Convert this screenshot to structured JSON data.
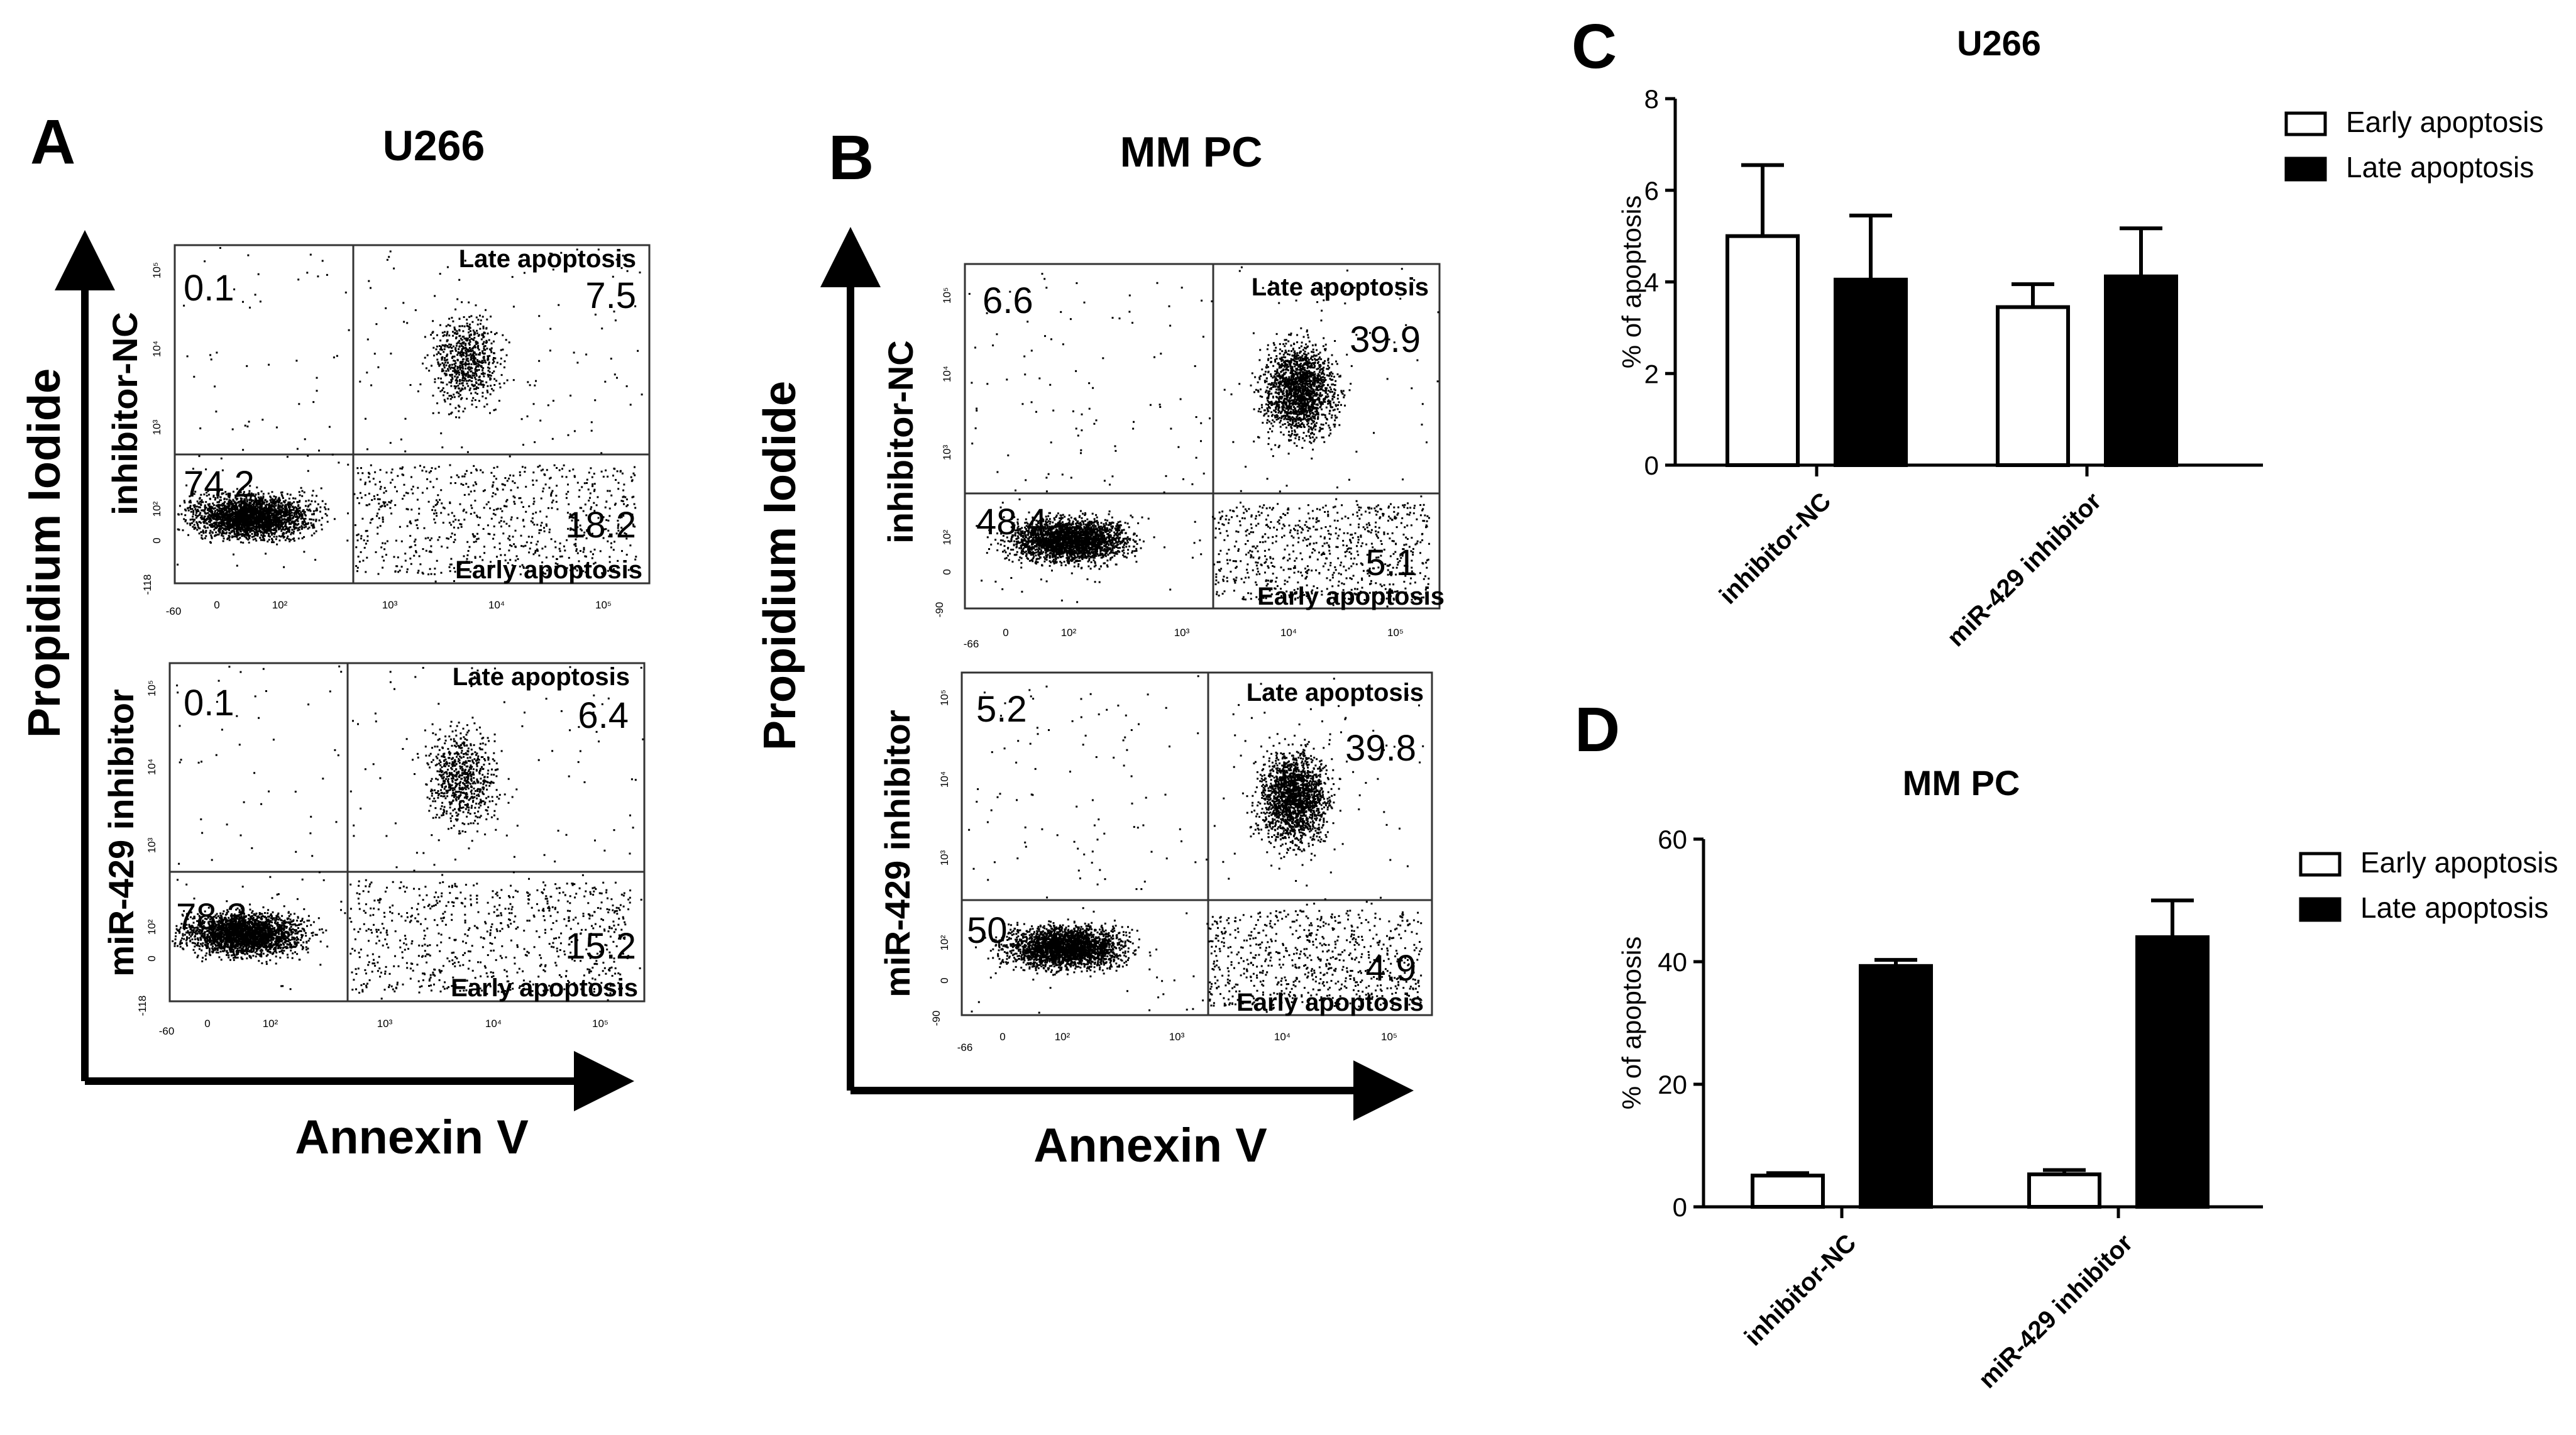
{
  "figure_labels": {
    "a": "A",
    "b": "B",
    "c": "C",
    "d": "D"
  },
  "colors": {
    "ink": "#000000",
    "early": "#ffffff",
    "late": "#000000",
    "background": "#ffffff"
  },
  "panel_A": {
    "title": "U266",
    "y_axis_label": "Propidium Iodide",
    "x_axis_label": "Annexin V",
    "x_ticks": [
      "-60",
      "0",
      "10²",
      "10³",
      "10⁴",
      "10⁵"
    ],
    "y_ticks": [
      "-118",
      "0",
      "10²",
      "10³",
      "10⁴",
      "10⁵"
    ],
    "plots": [
      {
        "row_label": "inhibitor-NC",
        "late_label": "Late apoptosis",
        "early_label": "Early apoptosis",
        "q_upper_left": "0.1",
        "q_upper_right": "7.5",
        "q_lower_left": "74.2",
        "q_lower_right": "18.2"
      },
      {
        "row_label": "miR-429 inhibitor",
        "late_label": "Late apoptosis",
        "early_label": "Early apoptosis",
        "q_upper_left": "0.1",
        "q_upper_right": "6.4",
        "q_lower_left": "78.3",
        "q_lower_right": "15.2"
      }
    ]
  },
  "panel_B": {
    "title": "MM PC",
    "y_axis_label": "Propidium Iodide",
    "x_axis_label": "Annexin V",
    "x_ticks": [
      "-66",
      "0",
      "10²",
      "10³",
      "10⁴",
      "10⁵"
    ],
    "y_ticks": [
      "-90",
      "0",
      "10²",
      "10³",
      "10⁴",
      "10⁵"
    ],
    "plots": [
      {
        "row_label": "inhibitor-NC",
        "late_label": "Late apoptosis",
        "early_label": "Early apoptosis",
        "q_upper_left": "6.6",
        "q_upper_right": "39.9",
        "q_lower_left": "48.4",
        "q_lower_right": "5.1"
      },
      {
        "row_label": "miR-429 inhibitor",
        "late_label": "Late apoptosis",
        "early_label": "Early apoptosis",
        "q_upper_left": "5.2",
        "q_upper_right": "39.8",
        "q_lower_left": "50",
        "q_lower_right": "4.9"
      }
    ]
  },
  "chart_data": [
    {
      "panel": "C",
      "type": "bar",
      "title": "U266",
      "xlabel": "",
      "ylabel": "% of apoptosis",
      "categories": [
        "inhibitor-NC",
        "miR-429 inhibitor"
      ],
      "ylim": [
        0,
        8
      ],
      "yticks": [
        0,
        2,
        4,
        6,
        8
      ],
      "legend_position": "top-right",
      "series": [
        {
          "name": "Early apoptosis",
          "fill": "#ffffff",
          "values": [
            5.0,
            3.45
          ],
          "errors": [
            1.55,
            0.5
          ]
        },
        {
          "name": "Late apoptosis",
          "fill": "#000000",
          "values": [
            4.05,
            4.12
          ],
          "errors": [
            1.4,
            1.05
          ]
        }
      ]
    },
    {
      "panel": "D",
      "type": "bar",
      "title": "MM PC",
      "xlabel": "",
      "ylabel": "% of apoptosis",
      "categories": [
        "inhibitor-NC",
        "miR-429 inhibitor"
      ],
      "ylim": [
        0,
        60
      ],
      "yticks": [
        0,
        20,
        40,
        60
      ],
      "legend_position": "top-right",
      "series": [
        {
          "name": "Early apoptosis",
          "fill": "#ffffff",
          "values": [
            5.1,
            5.3
          ],
          "errors": [
            0.4,
            0.7
          ]
        },
        {
          "name": "Late apoptosis",
          "fill": "#000000",
          "values": [
            39.3,
            44.0
          ],
          "errors": [
            1.0,
            6.0
          ]
        }
      ]
    }
  ]
}
